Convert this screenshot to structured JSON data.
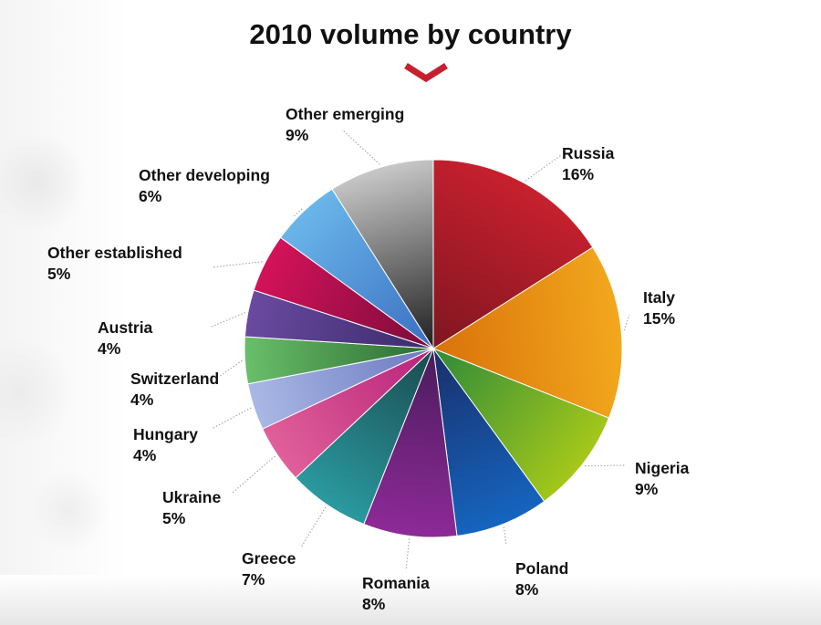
{
  "title": "2010 volume by country",
  "chart_data": {
    "type": "pie",
    "title": "2010 volume by country",
    "start": "12 o'clock",
    "direction": "clockwise",
    "slices": [
      {
        "label": "Russia",
        "value": 16,
        "value_label": "16%",
        "color": "#c8202e",
        "dark": "#7e1620"
      },
      {
        "label": "Italy",
        "value": 15,
        "value_label": "15%",
        "color": "#f2a81d",
        "dark": "#d9720a"
      },
      {
        "label": "Nigeria",
        "value": 9,
        "value_label": "9%",
        "color": "#a5c81a",
        "dark": "#2e8a3a"
      },
      {
        "label": "Poland",
        "value": 8,
        "value_label": "8%",
        "color": "#1565c0",
        "dark": "#1a2e6a"
      },
      {
        "label": "Romania",
        "value": 8,
        "value_label": "8%",
        "color": "#8e2a98",
        "dark": "#4a1c5c"
      },
      {
        "label": "Greece",
        "value": 7,
        "value_label": "7%",
        "color": "#2a9aa0",
        "dark": "#1a4a4e"
      },
      {
        "label": "Ukraine",
        "value": 5,
        "value_label": "5%",
        "color": "#e0609a",
        "dark": "#b8227a"
      },
      {
        "label": "Hungary",
        "value": 4,
        "value_label": "4%",
        "color": "#aab8e6",
        "dark": "#6a78c0"
      },
      {
        "label": "Switzerland",
        "value": 4,
        "value_label": "4%",
        "color": "#6abf6a",
        "dark": "#2a6a30"
      },
      {
        "label": "Austria",
        "value": 4,
        "value_label": "4%",
        "color": "#6a4aa0",
        "dark": "#3a2a6a"
      },
      {
        "label": "Other established",
        "value": 5,
        "value_label": "5%",
        "color": "#d4125a",
        "dark": "#7a0c3a"
      },
      {
        "label": "Other developing",
        "value": 6,
        "value_label": "6%",
        "color": "#6ab6ea",
        "dark": "#3a6ec0"
      },
      {
        "label": "Other emerging",
        "value": 9,
        "value_label": "9%",
        "color": "#c8c8c8",
        "dark": "#1e1e1e"
      }
    ]
  }
}
